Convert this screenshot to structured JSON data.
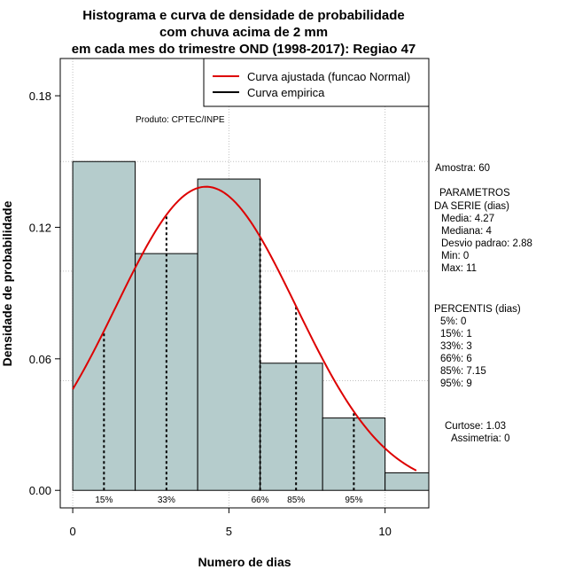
{
  "chart_data": {
    "type": "bar",
    "title_lines": [
      "Histograma e curva de densidade de probabilidade",
      "com chuva acima de 2 mm",
      "em cada mes do trimestre OND (1998-2017): Regiao 47"
    ],
    "xlabel": "Numero de dias",
    "ylabel": "Densidade de probabilidade",
    "xlim": [
      -0.4,
      11.4
    ],
    "ylim": [
      -0.008,
      0.197
    ],
    "x_ticks": [
      0,
      5,
      10
    ],
    "x_tick_labels": [
      "0",
      "5",
      "10"
    ],
    "y_ticks": [
      0.0,
      0.06,
      0.12,
      0.18
    ],
    "y_tick_labels": [
      "0.00",
      "0.06",
      "0.12",
      "0.18"
    ],
    "grid_x": [
      0,
      5,
      10
    ],
    "grid_y": [
      0.05,
      0.1,
      0.15
    ],
    "bins": [
      {
        "x0": 0,
        "x1": 2,
        "density": 0.15
      },
      {
        "x0": 2,
        "x1": 4,
        "density": 0.108
      },
      {
        "x0": 4,
        "x1": 6,
        "density": 0.142
      },
      {
        "x0": 6,
        "x1": 8,
        "density": 0.058
      },
      {
        "x0": 8,
        "x1": 10,
        "density": 0.033
      },
      {
        "x0": 10,
        "x1": 11.4,
        "density": 0.008
      }
    ],
    "normal_curve": {
      "mean": 4.27,
      "sd": 2.88,
      "x_from": 0,
      "x_to": 11
    },
    "percentile_lines": [
      {
        "label": "15%",
        "x": 1
      },
      {
        "label": "33%",
        "x": 3
      },
      {
        "label": "66%",
        "x": 6
      },
      {
        "label": "85%",
        "x": 7.15
      },
      {
        "label": "95%",
        "x": 9
      }
    ],
    "legend": {
      "position": "top-right",
      "entries": [
        {
          "label": "Curva ajustada (funcao Normal)",
          "color": "#dd0000"
        },
        {
          "label": "Curva empirica",
          "color": "#000000"
        }
      ]
    },
    "annotation": "Produto: CPTEC/INPE",
    "bar_color": "#b5cccc",
    "curve_color": "#dd0000"
  },
  "side_panel": {
    "amostra": "Amostra: 60",
    "param_title": "PARAMETROS",
    "param_subtitle": "DA SERIE (dias)",
    "params": [
      "Media: 4.27",
      "Mediana: 4",
      "Desvio padrao: 2.88",
      "Min: 0",
      "Max: 11"
    ],
    "perc_title": "PERCENTIS (dias)",
    "percentis": [
      "5%: 0",
      "15%: 1",
      "33%: 3",
      "66%: 6",
      "85%: 7.15",
      "95%: 9"
    ],
    "curtose": "Curtose: 1.03",
    "assimetria": "Assimetria: 0"
  }
}
